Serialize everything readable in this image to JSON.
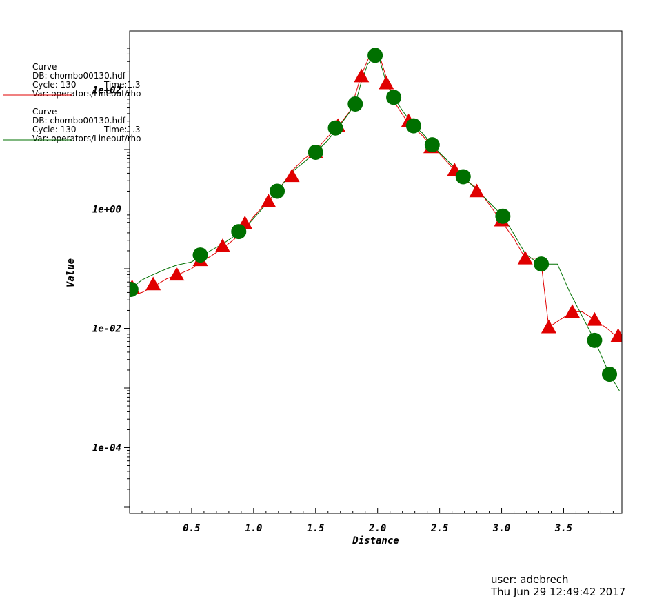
{
  "chart_data": {
    "type": "line",
    "xlabel": "Distance",
    "ylabel": "Value",
    "xlim": [
      0.0,
      3.97
    ],
    "ylim": [
      1e-05,
      500
    ],
    "y_scale": "log",
    "x_ticks": [
      {
        "value": 0.5,
        "label": "0.5"
      },
      {
        "value": 1.0,
        "label": "1.0"
      },
      {
        "value": 1.5,
        "label": "1.5"
      },
      {
        "value": 2.0,
        "label": "2.0"
      },
      {
        "value": 2.5,
        "label": "2.5"
      },
      {
        "value": 3.0,
        "label": "3.0"
      },
      {
        "value": 3.5,
        "label": "3.5"
      }
    ],
    "y_ticks": [
      {
        "value": 100,
        "label": "1e+02"
      },
      {
        "value": 1,
        "label": "1e+00"
      },
      {
        "value": 0.01,
        "label": "1e-02"
      },
      {
        "value": 0.0001,
        "label": "1e-04"
      }
    ],
    "grid": false,
    "legend_position": "top-left",
    "series": [
      {
        "color": "#e00000",
        "marker": "triangle",
        "legend": {
          "title": "Curve",
          "db": "DB: chombo00130.hdf",
          "cycle": "Cycle: 130",
          "time": "Time:1.3",
          "var": "Var: operators/Lineout/rho"
        },
        "line": [
          [
            0.0,
            0.035
          ],
          [
            0.1,
            0.04
          ],
          [
            0.19,
            0.05
          ],
          [
            0.3,
            0.068
          ],
          [
            0.38,
            0.078
          ],
          [
            0.5,
            0.1
          ],
          [
            0.57,
            0.13
          ],
          [
            0.65,
            0.16
          ],
          [
            0.75,
            0.22
          ],
          [
            0.85,
            0.32
          ],
          [
            0.93,
            0.47
          ],
          [
            1.0,
            0.75
          ],
          [
            1.12,
            1.38
          ],
          [
            1.22,
            2.4
          ],
          [
            1.31,
            4.4
          ],
          [
            1.4,
            6.8
          ],
          [
            1.5,
            9.5
          ],
          [
            1.58,
            15
          ],
          [
            1.68,
            24
          ],
          [
            1.78,
            45
          ],
          [
            1.87,
            180
          ],
          [
            1.93,
            350
          ],
          [
            1.97,
            380
          ],
          [
            2.02,
            350
          ],
          [
            2.07,
            160
          ],
          [
            2.14,
            60
          ],
          [
            2.25,
            27
          ],
          [
            2.35,
            18
          ],
          [
            2.45,
            11
          ],
          [
            2.55,
            6.5
          ],
          [
            2.62,
            4.5
          ],
          [
            2.69,
            3.2
          ],
          [
            2.8,
            2.3
          ],
          [
            2.9,
            1.2
          ],
          [
            3.0,
            0.62
          ],
          [
            3.1,
            0.32
          ],
          [
            3.19,
            0.15
          ],
          [
            3.28,
            0.15
          ],
          [
            3.32,
            0.12
          ],
          [
            3.38,
            0.0105
          ],
          [
            3.45,
            0.013
          ],
          [
            3.57,
            0.019
          ],
          [
            3.65,
            0.019
          ],
          [
            3.75,
            0.014
          ],
          [
            3.85,
            0.01
          ],
          [
            3.92,
            0.0075
          ],
          [
            3.97,
            0.007
          ]
        ],
        "markers": [
          [
            0.02,
            0.049
          ],
          [
            0.19,
            0.055
          ],
          [
            0.38,
            0.08
          ],
          [
            0.57,
            0.14
          ],
          [
            0.75,
            0.24
          ],
          [
            0.93,
            0.58
          ],
          [
            1.12,
            1.35
          ],
          [
            1.31,
            3.6
          ],
          [
            1.5,
            9.0
          ],
          [
            1.68,
            25
          ],
          [
            1.87,
            170
          ],
          [
            2.07,
            130
          ],
          [
            2.25,
            30
          ],
          [
            2.43,
            11
          ],
          [
            2.62,
            4.5
          ],
          [
            2.8,
            2.0
          ],
          [
            3.0,
            0.65
          ],
          [
            3.19,
            0.15
          ],
          [
            3.38,
            0.0105
          ],
          [
            3.57,
            0.019
          ],
          [
            3.75,
            0.014
          ],
          [
            3.94,
            0.0075
          ]
        ]
      },
      {
        "color": "#007000",
        "marker": "circle",
        "legend": {
          "title": "Curve",
          "db": "DB: chombo00130.hdf",
          "cycle": "Cycle: 130",
          "time": "Time:1.3",
          "var": "Var: operators/Lineout/rho"
        },
        "line": [
          [
            0.0,
            0.045
          ],
          [
            0.1,
            0.065
          ],
          [
            0.19,
            0.08
          ],
          [
            0.3,
            0.1
          ],
          [
            0.38,
            0.115
          ],
          [
            0.5,
            0.13
          ],
          [
            0.57,
            0.16
          ],
          [
            0.65,
            0.2
          ],
          [
            0.75,
            0.26
          ],
          [
            0.85,
            0.36
          ],
          [
            0.93,
            0.48
          ],
          [
            1.0,
            0.7
          ],
          [
            1.1,
            1.2
          ],
          [
            1.19,
            2.0
          ],
          [
            1.31,
            4.2
          ],
          [
            1.4,
            6.0
          ],
          [
            1.5,
            9.0
          ],
          [
            1.58,
            13
          ],
          [
            1.68,
            23
          ],
          [
            1.75,
            36
          ],
          [
            1.82,
            58
          ],
          [
            1.87,
            140
          ],
          [
            1.92,
            270
          ],
          [
            1.98,
            380
          ],
          [
            2.02,
            300
          ],
          [
            2.07,
            130
          ],
          [
            2.13,
            75
          ],
          [
            2.2,
            45
          ],
          [
            2.29,
            25
          ],
          [
            2.36,
            19
          ],
          [
            2.44,
            12
          ],
          [
            2.52,
            8
          ],
          [
            2.62,
            5
          ],
          [
            2.69,
            3.5
          ],
          [
            2.8,
            2.1
          ],
          [
            2.9,
            1.3
          ],
          [
            3.01,
            0.76
          ],
          [
            3.1,
            0.38
          ],
          [
            3.19,
            0.18
          ],
          [
            3.28,
            0.13
          ],
          [
            3.33,
            0.12
          ],
          [
            3.45,
            0.12
          ],
          [
            3.55,
            0.04
          ],
          [
            3.65,
            0.016
          ],
          [
            3.75,
            0.0063
          ],
          [
            3.87,
            0.0017
          ],
          [
            3.95,
            0.0009
          ]
        ],
        "markers": [
          [
            0.01,
            0.045
          ],
          [
            0.57,
            0.17
          ],
          [
            0.88,
            0.42
          ],
          [
            1.19,
            2.0
          ],
          [
            1.5,
            9.0
          ],
          [
            1.66,
            23
          ],
          [
            1.82,
            58
          ],
          [
            1.98,
            380
          ],
          [
            2.13,
            75
          ],
          [
            2.29,
            25
          ],
          [
            2.44,
            12
          ],
          [
            2.69,
            3.5
          ],
          [
            3.01,
            0.76
          ],
          [
            3.32,
            0.12
          ],
          [
            3.75,
            0.0063
          ],
          [
            3.87,
            0.0017
          ]
        ]
      }
    ]
  },
  "footer": {
    "user": "user: adebrech",
    "timestamp": "Thu Jun 29 12:49:42 2017"
  }
}
